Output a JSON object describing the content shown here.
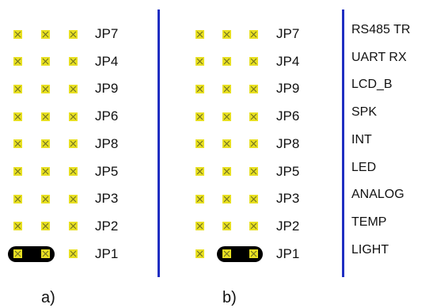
{
  "panel_a": {
    "caption": "a)",
    "rows": [
      "JP7",
      "JP4",
      "JP9",
      "JP6",
      "JP8",
      "JP5",
      "JP3",
      "JP2",
      "JP1"
    ],
    "jumper_row": "JP1",
    "jumper_pins": [
      1,
      2
    ]
  },
  "panel_b": {
    "caption": "b)",
    "rows": [
      "JP7",
      "JP4",
      "JP9",
      "JP6",
      "JP8",
      "JP5",
      "JP3",
      "JP2",
      "JP1"
    ],
    "jumper_row": "JP1",
    "jumper_pins": [
      2,
      3
    ]
  },
  "functions": [
    "RS485 TR",
    "UART RX",
    "LCD_B",
    "SPK",
    "INT",
    "LED",
    "ANALOG",
    "TEMP",
    "LIGHT"
  ],
  "colors": {
    "pin": "#e8e022",
    "jumper": "#000000",
    "divider": "#1f2ec2"
  }
}
